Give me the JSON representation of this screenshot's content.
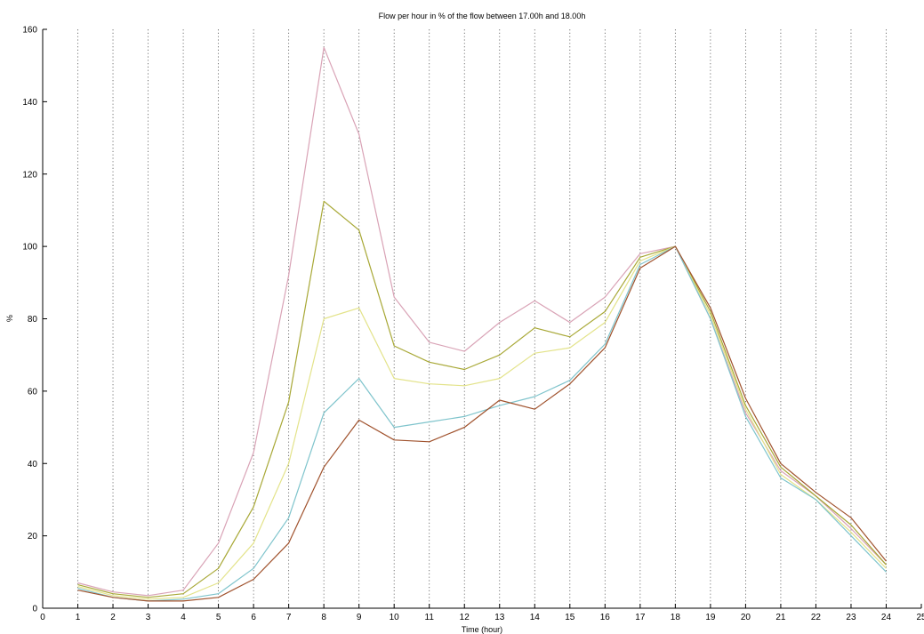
{
  "chart_data": {
    "type": "line",
    "title": "Flow per hour in % of the flow between 17.00h and 18.00h",
    "xlabel": "Time (hour)",
    "ylabel": "%",
    "xlim": [
      0,
      25
    ],
    "ylim": [
      0,
      160
    ],
    "xticks": [
      "0",
      "1",
      "2",
      "3",
      "4",
      "5",
      "6",
      "7",
      "8",
      "9",
      "10",
      "11",
      "12",
      "13",
      "14",
      "15",
      "16",
      "17",
      "18",
      "19",
      "20",
      "21",
      "22",
      "23",
      "24",
      "25"
    ],
    "yticks": [
      "0",
      "20",
      "40",
      "60",
      "80",
      "100",
      "120",
      "140",
      "160"
    ],
    "grid": "vertical dotted",
    "x": [
      1,
      2,
      3,
      4,
      5,
      6,
      7,
      8,
      9,
      10,
      11,
      12,
      13,
      14,
      15,
      16,
      17,
      18,
      19,
      20,
      21,
      22,
      23,
      24
    ],
    "series": [
      {
        "color": "#d9a3b6",
        "values": [
          7,
          4.5,
          3.5,
          5,
          18,
          43,
          92,
          155,
          131,
          86,
          73.5,
          71,
          79,
          85,
          79,
          86,
          98,
          100,
          80,
          54,
          38,
          31,
          22,
          12
        ]
      },
      {
        "color": "#a8a836",
        "values": [
          6.5,
          4,
          3,
          4,
          11,
          28,
          57,
          112.5,
          104.5,
          72.5,
          68,
          66,
          70,
          77.5,
          75,
          82,
          97,
          100,
          82,
          56,
          39,
          31,
          23,
          12
        ]
      },
      {
        "color": "#e3e38a",
        "values": [
          6,
          3.5,
          2.5,
          3,
          7,
          18,
          40,
          80,
          83,
          63.5,
          62,
          61.5,
          63.5,
          70.5,
          72,
          79,
          96,
          100,
          81,
          55,
          37,
          30,
          21,
          11
        ]
      },
      {
        "color": "#7fc4cc",
        "values": [
          5.5,
          3,
          2,
          2.5,
          4,
          11,
          25,
          54,
          63.5,
          50,
          51.5,
          53,
          56,
          58.5,
          63,
          73,
          95,
          100,
          80,
          53,
          36,
          30,
          20,
          10
        ]
      },
      {
        "color": "#a0522d",
        "values": [
          5,
          3,
          2,
          2,
          3,
          8,
          18,
          39,
          52,
          46.5,
          46,
          50,
          57.5,
          55,
          62,
          72,
          94,
          100,
          83,
          58,
          40,
          32,
          25,
          13
        ]
      }
    ]
  }
}
